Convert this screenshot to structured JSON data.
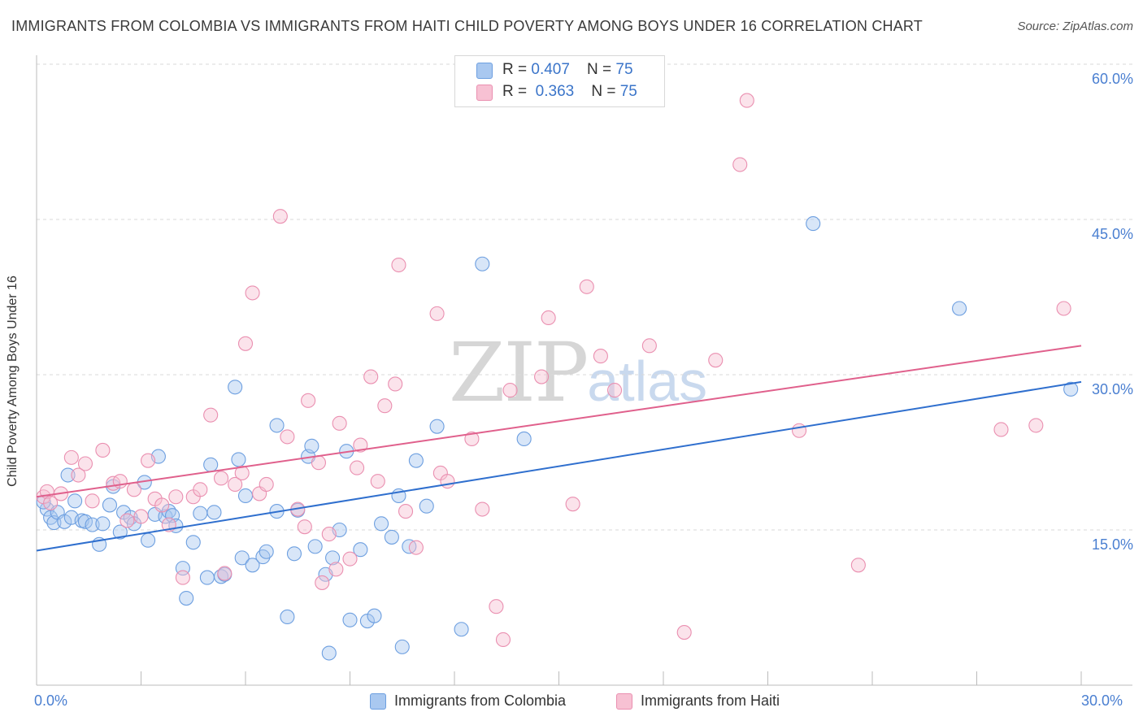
{
  "title": "IMMIGRANTS FROM COLOMBIA VS IMMIGRANTS FROM HAITI CHILD POVERTY AMONG BOYS UNDER 16 CORRELATION CHART",
  "source": "Source: ZipAtlas.com",
  "watermark": {
    "zip": "ZIP",
    "atlas": "atlas"
  },
  "legend": {
    "rows": [
      {
        "r_label": "R = ",
        "r_value": "0.407",
        "n_label": "N = ",
        "n_value": "75"
      },
      {
        "r_label": "R = ",
        "r_value": "0.363",
        "n_label": "N = ",
        "n_value": "75"
      }
    ]
  },
  "bottom_legend": [
    "Immigrants from Colombia",
    "Immigrants from Haiti"
  ],
  "chart_data": {
    "type": "scatter",
    "title": "IMMIGRANTS FROM COLOMBIA VS IMMIGRANTS FROM HAITI CHILD POVERTY AMONG BOYS UNDER 16 CORRELATION CHART",
    "xlabel": "",
    "ylabel": "Child Poverty Among Boys Under 16",
    "xlim": [
      0,
      30
    ],
    "ylim": [
      1.5,
      62
    ],
    "x_tick_labels": [
      "0.0%",
      "30.0%"
    ],
    "y_ticks": [
      15,
      30,
      45,
      60
    ],
    "y_tick_labels": [
      "15.0%",
      "30.0%",
      "45.0%",
      "60.0%"
    ],
    "grid": "horizontal dashed",
    "legend_position": "top-center",
    "series": [
      {
        "name": "Immigrants from Colombia",
        "color": "#a9c8f0",
        "stroke": "#6d9fe0",
        "line_color": "#2f6fce",
        "trend": [
          [
            0,
            13.0
          ],
          [
            30,
            29.3
          ]
        ],
        "points": [
          [
            0.3,
            17.0
          ],
          [
            0.4,
            16.2
          ],
          [
            0.5,
            15.7
          ],
          [
            0.6,
            16.7
          ],
          [
            0.8,
            15.8
          ],
          [
            0.9,
            20.3
          ],
          [
            1.0,
            16.2
          ],
          [
            1.1,
            17.8
          ],
          [
            1.3,
            15.9
          ],
          [
            1.4,
            15.8
          ],
          [
            1.6,
            15.5
          ],
          [
            1.8,
            13.6
          ],
          [
            1.9,
            15.6
          ],
          [
            2.1,
            17.4
          ],
          [
            2.2,
            19.2
          ],
          [
            2.4,
            14.8
          ],
          [
            2.5,
            16.7
          ],
          [
            2.7,
            16.2
          ],
          [
            2.8,
            15.6
          ],
          [
            3.1,
            19.6
          ],
          [
            3.2,
            14.0
          ],
          [
            3.4,
            16.5
          ],
          [
            3.5,
            22.1
          ],
          [
            3.7,
            16.3
          ],
          [
            3.8,
            16.8
          ],
          [
            3.9,
            16.4
          ],
          [
            4.0,
            15.4
          ],
          [
            4.2,
            11.3
          ],
          [
            4.3,
            8.4
          ],
          [
            4.5,
            13.8
          ],
          [
            4.7,
            16.6
          ],
          [
            4.9,
            10.4
          ],
          [
            5.0,
            21.3
          ],
          [
            5.1,
            16.7
          ],
          [
            5.3,
            10.5
          ],
          [
            5.4,
            10.7
          ],
          [
            5.7,
            28.8
          ],
          [
            5.8,
            21.8
          ],
          [
            5.9,
            12.3
          ],
          [
            6.0,
            18.3
          ],
          [
            6.2,
            11.6
          ],
          [
            6.5,
            12.4
          ],
          [
            6.6,
            12.9
          ],
          [
            6.9,
            16.8
          ],
          [
            6.9,
            25.1
          ],
          [
            7.2,
            6.6
          ],
          [
            7.4,
            12.7
          ],
          [
            7.5,
            16.9
          ],
          [
            7.8,
            22.1
          ],
          [
            7.9,
            23.1
          ],
          [
            8.0,
            13.4
          ],
          [
            8.3,
            10.7
          ],
          [
            8.4,
            3.1
          ],
          [
            8.5,
            12.3
          ],
          [
            8.7,
            15.0
          ],
          [
            8.9,
            22.6
          ],
          [
            9.0,
            6.3
          ],
          [
            9.3,
            13.1
          ],
          [
            9.5,
            6.2
          ],
          [
            9.7,
            6.7
          ],
          [
            9.9,
            15.6
          ],
          [
            10.2,
            14.3
          ],
          [
            10.4,
            18.3
          ],
          [
            10.5,
            3.7
          ],
          [
            10.7,
            13.4
          ],
          [
            10.9,
            21.7
          ],
          [
            11.2,
            17.3
          ],
          [
            11.5,
            25.0
          ],
          [
            12.2,
            5.4
          ],
          [
            12.8,
            40.7
          ],
          [
            14.0,
            23.8
          ],
          [
            22.3,
            44.6
          ],
          [
            26.5,
            36.4
          ],
          [
            29.7,
            28.6
          ],
          [
            0.2,
            17.7
          ]
        ]
      },
      {
        "name": "Immigrants from Haiti",
        "color": "#f7c1d3",
        "stroke": "#ea8fb0",
        "line_color": "#e0608c",
        "trend": [
          [
            0,
            18.2
          ],
          [
            30,
            32.8
          ]
        ],
        "points": [
          [
            0.2,
            18.2
          ],
          [
            0.3,
            18.7
          ],
          [
            0.4,
            17.6
          ],
          [
            0.7,
            18.5
          ],
          [
            1.0,
            22.0
          ],
          [
            1.2,
            20.3
          ],
          [
            1.4,
            21.4
          ],
          [
            1.6,
            17.8
          ],
          [
            1.9,
            22.7
          ],
          [
            2.2,
            19.5
          ],
          [
            2.4,
            19.7
          ],
          [
            2.6,
            15.9
          ],
          [
            2.8,
            18.9
          ],
          [
            3.0,
            16.3
          ],
          [
            3.2,
            21.7
          ],
          [
            3.4,
            18.0
          ],
          [
            3.6,
            17.4
          ],
          [
            3.8,
            15.5
          ],
          [
            4.0,
            18.2
          ],
          [
            4.2,
            10.4
          ],
          [
            4.5,
            18.2
          ],
          [
            4.7,
            18.9
          ],
          [
            5.0,
            26.1
          ],
          [
            5.3,
            20.0
          ],
          [
            5.4,
            10.8
          ],
          [
            5.7,
            19.4
          ],
          [
            5.9,
            20.5
          ],
          [
            6.0,
            33.0
          ],
          [
            6.2,
            37.9
          ],
          [
            6.4,
            18.5
          ],
          [
            6.6,
            19.4
          ],
          [
            7.0,
            45.3
          ],
          [
            7.2,
            24.0
          ],
          [
            7.5,
            17.0
          ],
          [
            7.7,
            15.3
          ],
          [
            7.8,
            27.5
          ],
          [
            8.1,
            21.5
          ],
          [
            8.2,
            9.9
          ],
          [
            8.4,
            14.6
          ],
          [
            8.6,
            11.2
          ],
          [
            8.7,
            25.3
          ],
          [
            9.0,
            12.2
          ],
          [
            9.2,
            21.0
          ],
          [
            9.3,
            23.2
          ],
          [
            9.6,
            29.8
          ],
          [
            9.8,
            19.7
          ],
          [
            10.0,
            27.0
          ],
          [
            10.3,
            29.1
          ],
          [
            10.4,
            40.6
          ],
          [
            10.6,
            16.8
          ],
          [
            10.9,
            13.3
          ],
          [
            11.5,
            35.9
          ],
          [
            11.6,
            20.5
          ],
          [
            11.8,
            19.7
          ],
          [
            12.5,
            23.8
          ],
          [
            12.8,
            17.0
          ],
          [
            13.2,
            7.6
          ],
          [
            13.4,
            4.4
          ],
          [
            13.6,
            28.5
          ],
          [
            14.5,
            29.8
          ],
          [
            14.7,
            35.5
          ],
          [
            15.4,
            17.5
          ],
          [
            15.8,
            38.5
          ],
          [
            16.2,
            31.8
          ],
          [
            16.6,
            28.5
          ],
          [
            17.6,
            32.8
          ],
          [
            18.6,
            5.1
          ],
          [
            19.5,
            31.4
          ],
          [
            20.2,
            50.3
          ],
          [
            20.4,
            56.5
          ],
          [
            21.9,
            24.6
          ],
          [
            23.6,
            11.6
          ],
          [
            27.7,
            24.7
          ],
          [
            28.7,
            25.1
          ],
          [
            29.5,
            36.4
          ]
        ]
      }
    ]
  }
}
